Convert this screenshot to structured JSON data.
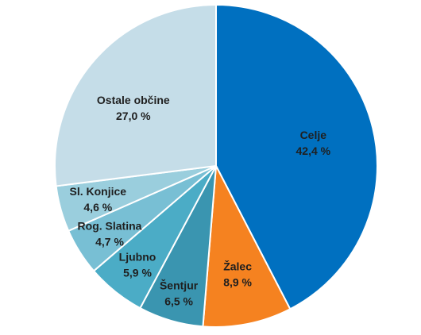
{
  "chart_data": {
    "type": "pie",
    "title": "",
    "start_angle_deg": 0,
    "direction": "clockwise",
    "slices": [
      {
        "label": "Celje",
        "value": 42.4,
        "display_value": "42,4 %",
        "color": "#0070C0"
      },
      {
        "label": "Žalec",
        "value": 8.9,
        "display_value": "8,9 %",
        "color": "#F58220"
      },
      {
        "label": "Šentjur",
        "value": 6.5,
        "display_value": "6,5 %",
        "color": "#3A95B0"
      },
      {
        "label": "Ljubno",
        "value": 5.9,
        "display_value": "5,9 %",
        "color": "#4BACC6"
      },
      {
        "label": "Rog. Slatina",
        "value": 4.7,
        "display_value": "4,7 %",
        "color": "#78BFD4"
      },
      {
        "label": "Sl. Konjice",
        "value": 4.6,
        "display_value": "4,6 %",
        "color": "#9ACEDD"
      },
      {
        "label": "Ostale občine",
        "value": 27.0,
        "display_value": "27,0 %",
        "color": "#C5DDE8"
      }
    ]
  }
}
